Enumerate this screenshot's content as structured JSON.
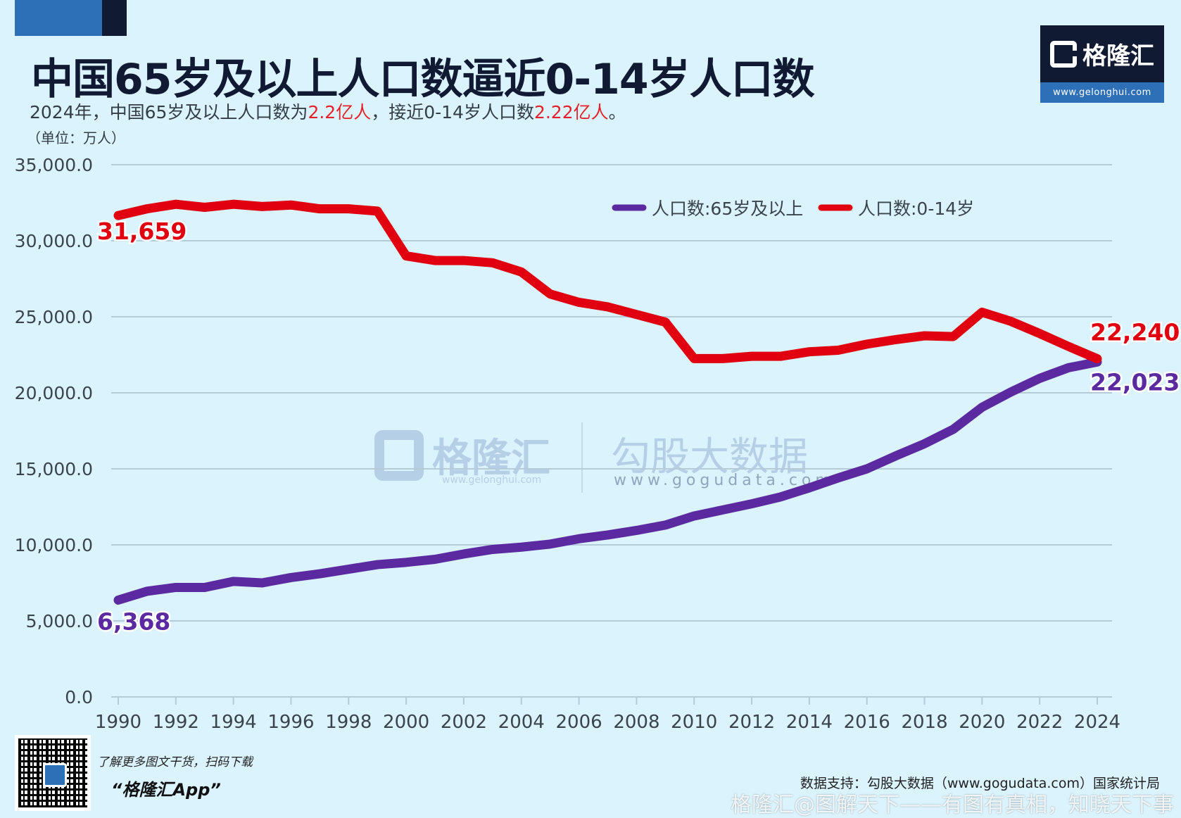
{
  "header": {
    "title": "中国65岁及以上人口数逼近0-14岁人口数",
    "subtitle_parts": [
      "2024年，中国65岁及以上人口数为",
      "2.2亿人",
      "，接近0-14岁人口数",
      "2.22亿人",
      "。"
    ],
    "unit": "（单位：万人）"
  },
  "logo": {
    "brand": "格隆汇",
    "url": "www.gelonghui.com"
  },
  "watermark": {
    "left_brand": "格隆汇",
    "left_url": "www.gelonghui.com",
    "right_brand": "勾股大数据",
    "right_url": "www.gogudata.com"
  },
  "footer": {
    "qr_caption": "了解更多图文干货，扫码下载",
    "app_name": "“格隆汇App”",
    "source": "数据支持：勾股大数据（www.gogudata.com）国家统计局",
    "platform_watermark": "格隆汇@图解天下——有图有真相，知晓天下事"
  },
  "colors": {
    "series_65plus": "#5b2aa0",
    "series_0_14": "#e00010",
    "accent_blue": "#2e70b8",
    "dark_navy": "#111a33"
  },
  "chart_data": {
    "type": "line",
    "title": "中国65岁及以上人口数逼近0-14岁人口数",
    "xlabel": "",
    "ylabel": "万人",
    "ylim": [
      0,
      35000
    ],
    "yticks": [
      0,
      5000,
      10000,
      15000,
      20000,
      25000,
      30000,
      35000
    ],
    "ytick_labels": [
      "0.0",
      "5,000.0",
      "10,000.0",
      "15,000.0",
      "20,000.0",
      "25,000.0",
      "30,000.0",
      "35,000.0"
    ],
    "xtick_labels": [
      "1990",
      "1992",
      "1994",
      "1996",
      "1998",
      "2000",
      "2002",
      "2004",
      "2006",
      "2008",
      "2010",
      "2012",
      "2014",
      "2016",
      "2018",
      "2020",
      "2022",
      "2024"
    ],
    "grid": true,
    "legend_position": "top-right",
    "x": [
      1990,
      1991,
      1992,
      1993,
      1994,
      1995,
      1996,
      1997,
      1998,
      1999,
      2000,
      2001,
      2002,
      2003,
      2004,
      2005,
      2006,
      2007,
      2008,
      2009,
      2010,
      2011,
      2012,
      2013,
      2014,
      2015,
      2016,
      2017,
      2018,
      2019,
      2020,
      2021,
      2022,
      2023,
      2024
    ],
    "series": [
      {
        "name": "人口数:65岁及以上",
        "color": "#5b2aa0",
        "values": [
          6368,
          6950,
          7200,
          7200,
          7600,
          7500,
          7850,
          8100,
          8400,
          8700,
          8850,
          9050,
          9400,
          9700,
          9850,
          10050,
          10400,
          10650,
          10950,
          11300,
          11900,
          12300,
          12700,
          13150,
          13750,
          14400,
          15000,
          15850,
          16650,
          17600,
          19050,
          20050,
          20950,
          21650,
          22023
        ],
        "labels": {
          "first": "6,368",
          "last": "22,023"
        }
      },
      {
        "name": "人口数:0-14岁",
        "color": "#e00010",
        "values": [
          31659,
          32100,
          32400,
          32200,
          32400,
          32250,
          32350,
          32100,
          32100,
          31950,
          29000,
          28700,
          28700,
          28550,
          27950,
          26500,
          25950,
          25650,
          25150,
          24650,
          22250,
          22250,
          22400,
          22400,
          22700,
          22800,
          23200,
          23500,
          23750,
          23700,
          25300,
          24700,
          23900,
          23050,
          22240
        ],
        "labels": {
          "first": "31,659",
          "last": "22,240"
        }
      }
    ]
  }
}
